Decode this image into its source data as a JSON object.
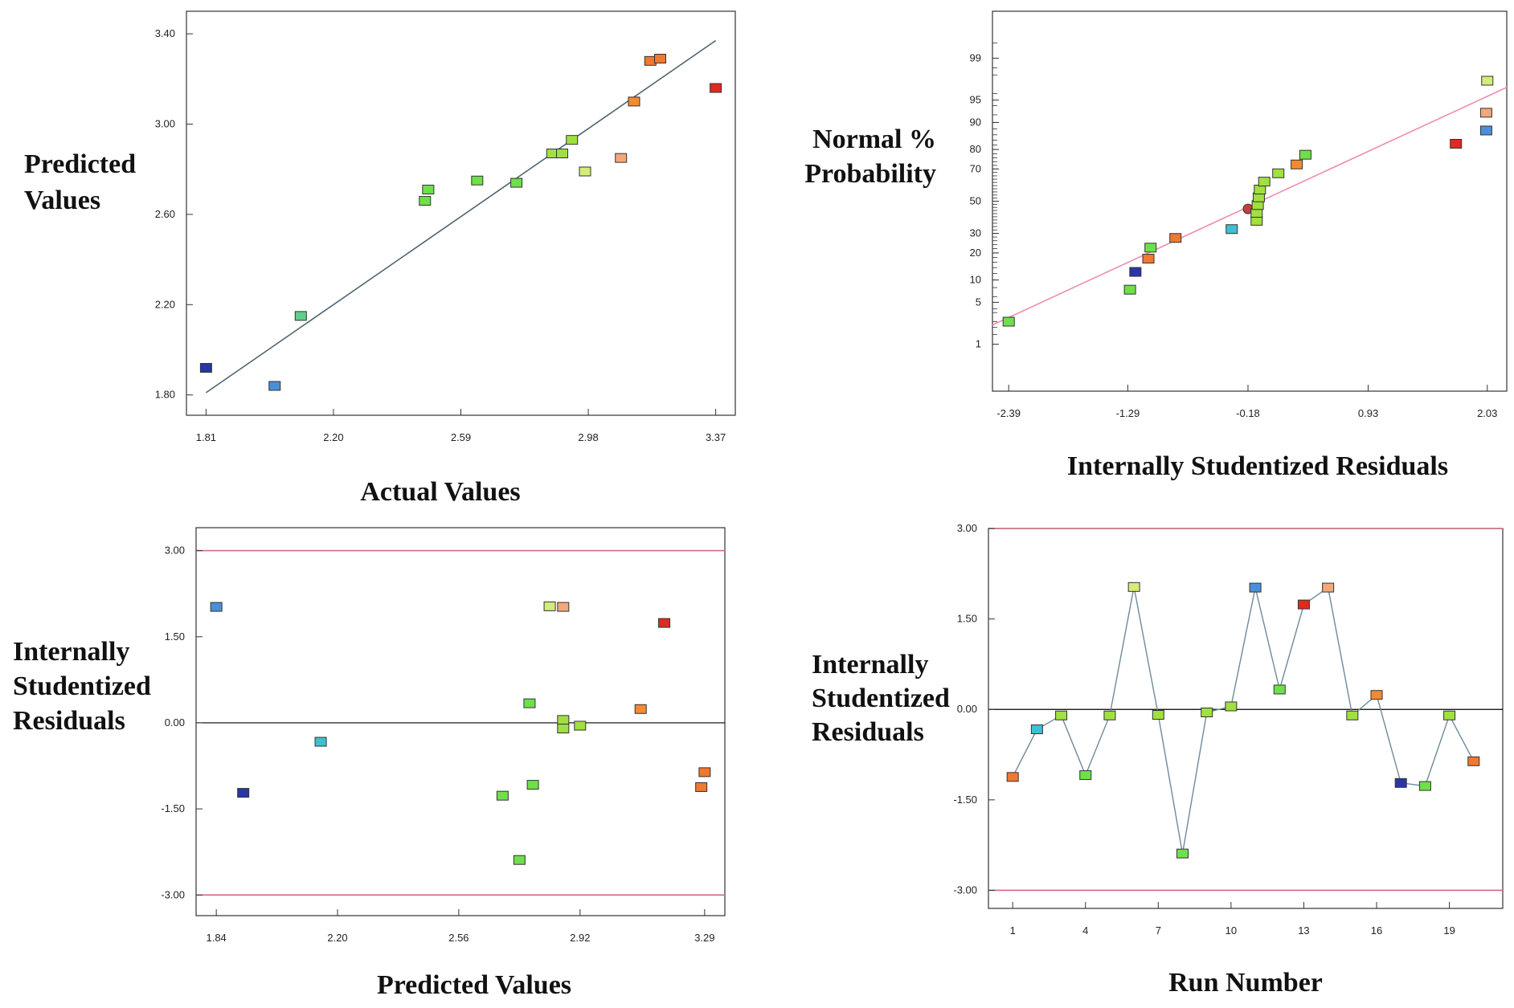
{
  "chart_data": [
    {
      "type": "scatter",
      "xlabel": "Actual Values",
      "ylabel": [
        "Predicted",
        "Values"
      ],
      "xlim": [
        1.75,
        3.43
      ],
      "ylim": [
        1.71,
        3.5
      ],
      "xticks": [
        "1.81",
        "2.20",
        "2.59",
        "2.98",
        "3.37"
      ],
      "yticks": [
        "1.80",
        "2.20",
        "2.60",
        "3.00",
        "3.40"
      ],
      "line": {
        "x": [
          1.81,
          3.37
        ],
        "y": [
          1.81,
          3.37
        ],
        "color": "#4f6470"
      },
      "points": [
        {
          "x": 1.81,
          "y": 1.92,
          "color": "#2a35a8"
        },
        {
          "x": 2.02,
          "y": 1.84,
          "color": "#4a90d9"
        },
        {
          "x": 2.1,
          "y": 2.15,
          "color": "#5fcf8a"
        },
        {
          "x": 2.48,
          "y": 2.66,
          "color": "#6ee04a"
        },
        {
          "x": 2.49,
          "y": 2.71,
          "color": "#6ee04a"
        },
        {
          "x": 2.64,
          "y": 2.75,
          "color": "#6ee04a"
        },
        {
          "x": 2.76,
          "y": 2.74,
          "color": "#6ee04a"
        },
        {
          "x": 2.87,
          "y": 2.87,
          "color": "#a0e040"
        },
        {
          "x": 2.9,
          "y": 2.87,
          "color": "#a0e040"
        },
        {
          "x": 2.93,
          "y": 2.93,
          "color": "#a0e040"
        },
        {
          "x": 2.97,
          "y": 2.79,
          "color": "#d4ec78"
        },
        {
          "x": 3.08,
          "y": 2.85,
          "color": "#f4a77a"
        },
        {
          "x": 3.12,
          "y": 3.1,
          "color": "#f48a32"
        },
        {
          "x": 3.17,
          "y": 3.28,
          "color": "#f07830"
        },
        {
          "x": 3.2,
          "y": 3.29,
          "color": "#f07830"
        },
        {
          "x": 3.37,
          "y": 3.16,
          "color": "#e02a20"
        }
      ]
    },
    {
      "type": "scatter",
      "xlabel": "Internally Studentized Residuals",
      "ylabel": [
        "Normal %",
        "Probability"
      ],
      "scale": "normal-probability",
      "xlim": [
        -2.54,
        2.21
      ],
      "ylim": [
        0.1,
        99.9
      ],
      "xticks": [
        "-2.39",
        "-1.29",
        "-0.18",
        "0.93",
        "2.03"
      ],
      "yticks": [
        "1",
        "5",
        "10",
        "20",
        "30",
        "50",
        "70",
        "80",
        "90",
        "95",
        "99"
      ],
      "line": {
        "x": [
          -2.54,
          2.21
        ],
        "y": [
          2.2,
          96.8
        ],
        "color": "#f08cb0"
      },
      "points": [
        {
          "x": -2.39,
          "y": 2.5,
          "color": "#6ee04a"
        },
        {
          "x": -1.27,
          "y": 7.5,
          "color": "#6ee04a"
        },
        {
          "x": -1.22,
          "y": 12.5,
          "color": "#2a35a8"
        },
        {
          "x": -1.1,
          "y": 17.5,
          "color": "#f07830"
        },
        {
          "x": -1.08,
          "y": 22.5,
          "color": "#6ee04a"
        },
        {
          "x": -0.85,
          "y": 27.5,
          "color": "#f07830"
        },
        {
          "x": -0.33,
          "y": 32.5,
          "color": "#3fc0d0"
        },
        {
          "x": -0.18,
          "y": 45.0,
          "color": "#c04040"
        },
        {
          "x": -0.1,
          "y": 37.5,
          "color": "#a0e040"
        },
        {
          "x": -0.1,
          "y": 42.5,
          "color": "#a0e040"
        },
        {
          "x": -0.09,
          "y": 47.5,
          "color": "#a0e040"
        },
        {
          "x": -0.08,
          "y": 52.5,
          "color": "#a0e040"
        },
        {
          "x": -0.07,
          "y": 57.5,
          "color": "#a0e040"
        },
        {
          "x": -0.03,
          "y": 62.5,
          "color": "#a0e040"
        },
        {
          "x": 0.1,
          "y": 67.5,
          "color": "#a0e040"
        },
        {
          "x": 0.27,
          "y": 72.5,
          "color": "#f48a32"
        },
        {
          "x": 0.35,
          "y": 77.5,
          "color": "#6ee04a"
        },
        {
          "x": 1.74,
          "y": 82.5,
          "color": "#e02a20"
        },
        {
          "x": 2.02,
          "y": 87.5,
          "color": "#4a90d9"
        },
        {
          "x": 2.02,
          "y": 92.5,
          "color": "#f4a77a"
        },
        {
          "x": 2.03,
          "y": 97.5,
          "color": "#d4ec78"
        }
      ]
    },
    {
      "type": "scatter",
      "xlabel": "Predicted Values",
      "ylabel": [
        "Internally",
        "Studentized",
        "Residuals"
      ],
      "xlim": [
        1.78,
        3.35
      ],
      "ylim": [
        -3.36,
        3.4
      ],
      "xticks": [
        "1.84",
        "2.20",
        "2.56",
        "2.92",
        "3.29"
      ],
      "yticks": [
        "3.00",
        "1.50",
        "0.00",
        "-1.50",
        "-3.00"
      ],
      "reference_lines": [
        {
          "y": 3.0,
          "color": "#d06a7e"
        },
        {
          "y": -3.0,
          "color": "#d06a7e"
        },
        {
          "y": 0.0,
          "color": "#000000"
        }
      ],
      "points": [
        {
          "x": 1.84,
          "y": 2.02,
          "color": "#4a90d9"
        },
        {
          "x": 1.92,
          "y": -1.22,
          "color": "#2a35a8"
        },
        {
          "x": 2.15,
          "y": -0.33,
          "color": "#3fc0d0"
        },
        {
          "x": 2.69,
          "y": -1.27,
          "color": "#6ee04a"
        },
        {
          "x": 2.74,
          "y": -2.39,
          "color": "#6ee04a"
        },
        {
          "x": 2.77,
          "y": 0.34,
          "color": "#6ee04a"
        },
        {
          "x": 2.78,
          "y": -1.08,
          "color": "#6ee04a"
        },
        {
          "x": 2.83,
          "y": 2.03,
          "color": "#d4ec78"
        },
        {
          "x": 2.87,
          "y": 2.02,
          "color": "#f4a77a"
        },
        {
          "x": 2.87,
          "y": 0.05,
          "color": "#a0e040"
        },
        {
          "x": 2.87,
          "y": -0.1,
          "color": "#a0e040"
        },
        {
          "x": 2.92,
          "y": -0.05,
          "color": "#a0e040"
        },
        {
          "x": 3.1,
          "y": 0.24,
          "color": "#f48a32"
        },
        {
          "x": 3.17,
          "y": 1.74,
          "color": "#e02a20"
        },
        {
          "x": 3.28,
          "y": -1.12,
          "color": "#f07830"
        },
        {
          "x": 3.29,
          "y": -0.86,
          "color": "#f07830"
        }
      ]
    },
    {
      "type": "line",
      "xlabel": "Run Number",
      "ylabel": [
        "Internally",
        "Studentized",
        "Residuals"
      ],
      "xlim": [
        0.0,
        21.2
      ],
      "ylim": [
        -3.3,
        3.0
      ],
      "xticks": [
        "1",
        "4",
        "7",
        "10",
        "13",
        "16",
        "19"
      ],
      "yticks": [
        "3.00",
        "1.50",
        "0.00",
        "-1.50",
        "-3.00"
      ],
      "reference_lines": [
        {
          "y": 3.0,
          "color": "#d06a7e"
        },
        {
          "y": -3.0,
          "color": "#d06a7e"
        },
        {
          "y": 0.0,
          "color": "#000000"
        }
      ],
      "line_color": "#6e8a9a",
      "points": [
        {
          "x": 1,
          "y": -1.12,
          "color": "#f07830"
        },
        {
          "x": 2,
          "y": -0.33,
          "color": "#3fc0d0"
        },
        {
          "x": 3,
          "y": -0.1,
          "color": "#a0e040"
        },
        {
          "x": 4,
          "y": -1.09,
          "color": "#6ee04a"
        },
        {
          "x": 5,
          "y": -0.1,
          "color": "#a0e040"
        },
        {
          "x": 6,
          "y": 2.03,
          "color": "#d4ec78"
        },
        {
          "x": 7,
          "y": -0.09,
          "color": "#a0e040"
        },
        {
          "x": 8,
          "y": -2.39,
          "color": "#6ee04a"
        },
        {
          "x": 9,
          "y": -0.05,
          "color": "#a0e040"
        },
        {
          "x": 10,
          "y": 0.05,
          "color": "#a0e040"
        },
        {
          "x": 11,
          "y": 2.02,
          "color": "#4a90d9"
        },
        {
          "x": 12,
          "y": 0.33,
          "color": "#6ee04a"
        },
        {
          "x": 13,
          "y": 1.74,
          "color": "#e02a20"
        },
        {
          "x": 14,
          "y": 2.02,
          "color": "#f4a77a"
        },
        {
          "x": 15,
          "y": -0.1,
          "color": "#a0e040"
        },
        {
          "x": 16,
          "y": 0.24,
          "color": "#f48a32"
        },
        {
          "x": 17,
          "y": -1.22,
          "color": "#2a35a8"
        },
        {
          "x": 18,
          "y": -1.27,
          "color": "#6ee04a"
        },
        {
          "x": 19,
          "y": -0.1,
          "color": "#a0e040"
        },
        {
          "x": 20,
          "y": -0.86,
          "color": "#f07830"
        }
      ]
    }
  ]
}
